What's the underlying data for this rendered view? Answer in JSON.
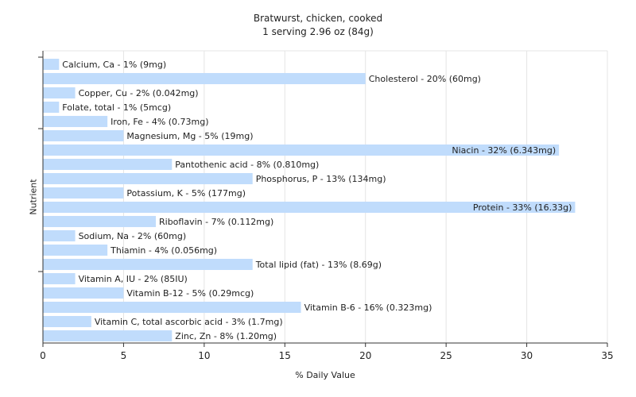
{
  "chart_data": {
    "type": "bar",
    "orientation": "horizontal",
    "title": "Bratwurst, chicken, cooked",
    "subtitle": "1 serving 2.96 oz (84g)",
    "xlabel": "% Daily Value",
    "ylabel": "Nutrient",
    "xlim": [
      0,
      35
    ],
    "xticks": [
      "0",
      "5",
      "10",
      "15",
      "20",
      "25",
      "30",
      "35"
    ],
    "grid": true,
    "bar_color": "#c0dcfc",
    "categories": [
      "Calcium, Ca",
      "Cholesterol",
      "Copper, Cu",
      "Folate, total",
      "Iron, Fe",
      "Magnesium, Mg",
      "Niacin",
      "Pantothenic acid",
      "Phosphorus, P",
      "Potassium, K",
      "Protein",
      "Riboflavin",
      "Sodium, Na",
      "Thiamin",
      "Total lipid (fat)",
      "Vitamin A, IU",
      "Vitamin B-12",
      "Vitamin B-6",
      "Vitamin C, total ascorbic acid",
      "Zinc, Zn"
    ],
    "values": [
      1,
      20,
      2,
      1,
      4,
      5,
      32,
      8,
      13,
      5,
      33,
      7,
      2,
      4,
      13,
      2,
      5,
      16,
      3,
      8
    ],
    "labels": [
      "Calcium, Ca - 1% (9mg)",
      "Cholesterol - 20% (60mg)",
      "Copper, Cu - 2% (0.042mg)",
      "Folate, total - 1% (5mcg)",
      "Iron, Fe - 4% (0.73mg)",
      "Magnesium, Mg - 5% (19mg)",
      "Niacin - 32% (6.343mg)",
      "Pantothenic acid - 8% (0.810mg)",
      "Phosphorus, P - 13% (134mg)",
      "Potassium, K - 5% (177mg)",
      "Protein - 33% (16.33g)",
      "Riboflavin - 7% (0.112mg)",
      "Sodium, Na - 2% (60mg)",
      "Thiamin - 4% (0.056mg)",
      "Total lipid (fat) - 13% (8.69g)",
      "Vitamin A, IU - 2% (85IU)",
      "Vitamin B-12 - 5% (0.29mcg)",
      "Vitamin B-6 - 16% (0.323mg)",
      "Vitamin C, total ascorbic acid - 3% (1.7mg)",
      "Zinc, Zn - 8% (1.20mg)"
    ]
  }
}
